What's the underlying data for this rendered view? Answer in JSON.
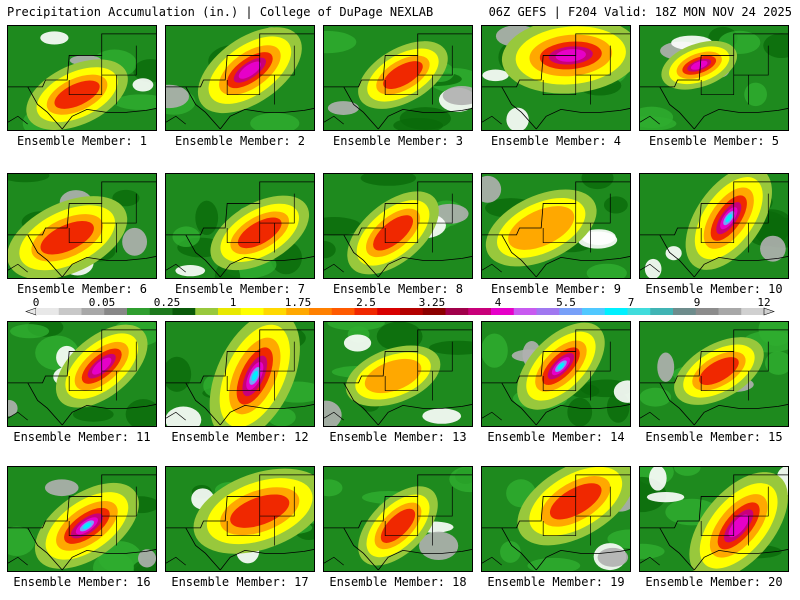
{
  "header": {
    "left_title": "Precipitation Accumulation (in.) | College of DuPage NEXLAB",
    "right_title": "06Z GEFS | F204 Valid: 18Z MON NOV 24 2025"
  },
  "colorbar": {
    "labels": [
      "0",
      "0.05",
      "0.25",
      "1",
      "1.75",
      "2.5",
      "3.25",
      "4",
      "5.5",
      "7",
      "9",
      "12"
    ],
    "colors": [
      "#e8e8e8",
      "#c8c8c8",
      "#a8a8a8",
      "#888888",
      "#2f9e2f",
      "#1e7a1e",
      "#0a5a0a",
      "#98c83c",
      "#e8e800",
      "#ffff00",
      "#ffd800",
      "#ffa800",
      "#ff8000",
      "#ff5a00",
      "#f02800",
      "#d80000",
      "#b40000",
      "#8c0000",
      "#a0004a",
      "#c8007a",
      "#e600c8",
      "#c85af0",
      "#a078f0",
      "#78a0f8",
      "#50c8ff",
      "#00f0ff",
      "#40dcdc",
      "#40b4b4",
      "#6e8c8c",
      "#8c8c8c",
      "#a8a8a8",
      "#d0d0d0"
    ]
  },
  "members": [
    {
      "label": "Ensemble Member: 1"
    },
    {
      "label": "Ensemble Member: 2"
    },
    {
      "label": "Ensemble Member: 3"
    },
    {
      "label": "Ensemble Member: 4"
    },
    {
      "label": "Ensemble Member: 5"
    },
    {
      "label": "Ensemble Member: 6"
    },
    {
      "label": "Ensemble Member: 7"
    },
    {
      "label": "Ensemble Member: 8"
    },
    {
      "label": "Ensemble Member: 9"
    },
    {
      "label": "Ensemble Member: 10"
    },
    {
      "label": "Ensemble Member: 11"
    },
    {
      "label": "Ensemble Member: 12"
    },
    {
      "label": "Ensemble Member: 13"
    },
    {
      "label": "Ensemble Member: 14"
    },
    {
      "label": "Ensemble Member: 15"
    },
    {
      "label": "Ensemble Member: 16"
    },
    {
      "label": "Ensemble Member: 17"
    },
    {
      "label": "Ensemble Member: 18"
    },
    {
      "label": "Ensemble Member: 19"
    },
    {
      "label": "Ensemble Member: 20"
    }
  ]
}
